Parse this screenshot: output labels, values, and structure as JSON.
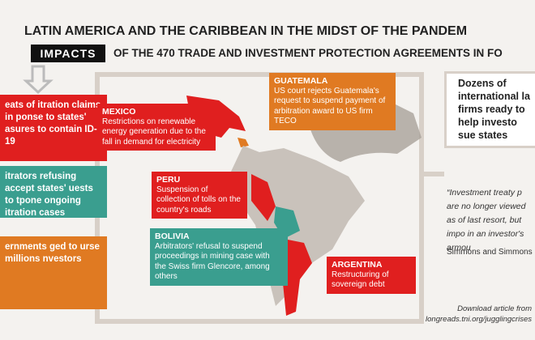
{
  "header": {
    "title": "LATIN AMERICA AND THE CARIBBEAN IN THE MIDST OF THE PANDEM",
    "impacts": "IMPACTS",
    "subtitle": "OF THE 470 TRADE AND INVESTMENT PROTECTION AGREEMENTS IN FO"
  },
  "left_boxes": [
    "eats of itration claims in ponse to states' asures to contain ID-19",
    "itrators refusing accept states' uests to tpone ongoing itration cases",
    "ernments ged to urse millions nvestors"
  ],
  "callouts": {
    "mexico": {
      "title": "MEXICO",
      "text": "Restrictions on renewable energy generation due to the fall in demand for electricity"
    },
    "guatemala": {
      "title": "GUATEMALA",
      "text": "US court rejects Guatemala's request to suspend payment of arbitration award to US firm TECO"
    },
    "peru": {
      "title": "PERU",
      "text": "Suspension of collection of tolls on the country's roads"
    },
    "bolivia": {
      "title": "BOLIVIA",
      "text": "Arbitrators' refusal to suspend proceedings in mining case with the Swiss firm Glencore, among others"
    },
    "argentina": {
      "title": "ARGENTINA",
      "text": "Restructuring of sovereign debt"
    }
  },
  "side": {
    "box": "Dozens of international la firms ready to help investo sue states",
    "quote": "“Investment treaty p are no longer viewed as of last resort, but impo in an investor's armou",
    "attribution": "Simmons and Simmons"
  },
  "footer": {
    "line1": "Download article from",
    "line2": "longreads.tni.org/jugglingcrises"
  }
}
